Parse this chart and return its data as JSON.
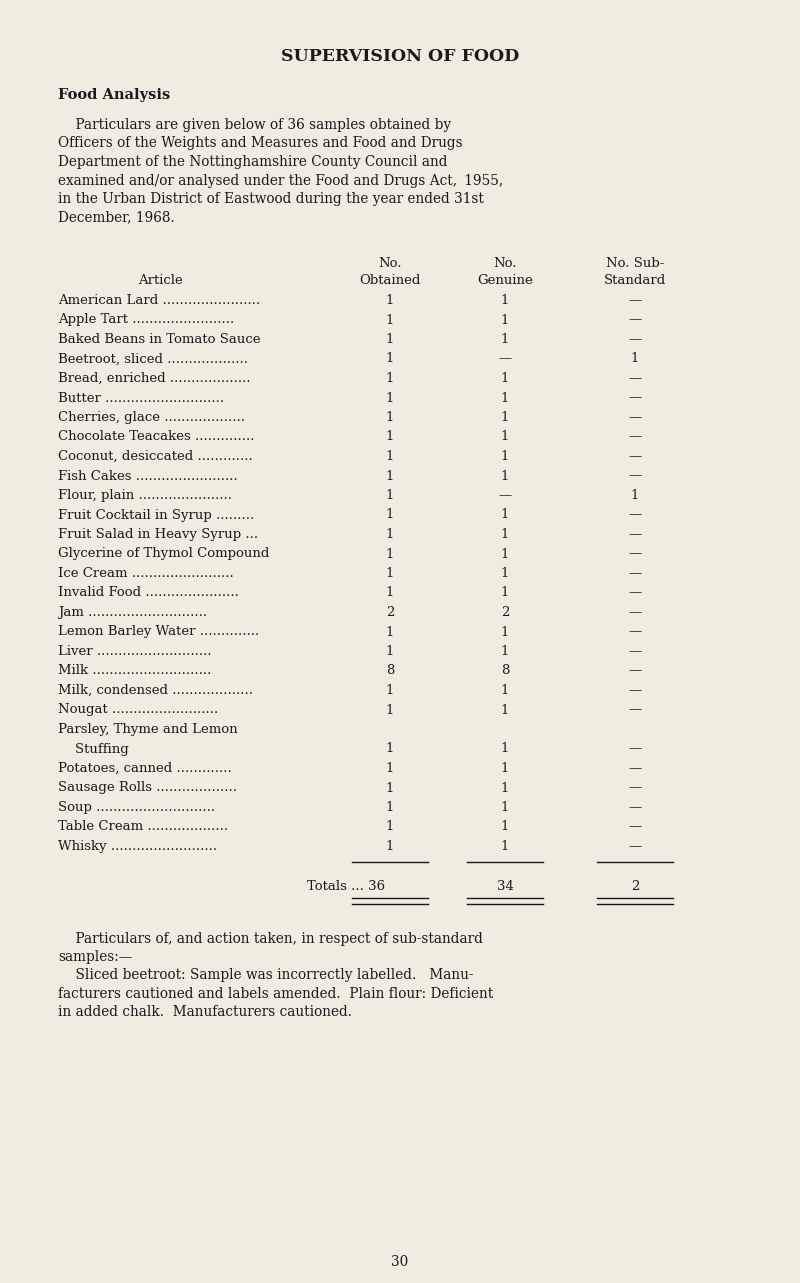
{
  "bg_color": "#f0ece0",
  "text_color": "#1a1a1a",
  "title": "SUPERVISION OF FOOD",
  "subtitle": "Food Analysis",
  "intro_lines": [
    "    Particulars are given below of 36 samples obtained by",
    "Officers of the Weights and Measures and Food and Drugs",
    "Department of the Nottinghamshire County Council and",
    "examined and/or analysed under the Food and Drugs Act,  1955,",
    "in the Urban District of Eastwood during the year ended 31st",
    "December, 1968."
  ],
  "col_header_row1": [
    "",
    "",
    "No.",
    "No.",
    "No. Sub-"
  ],
  "col_header_row2": [
    "",
    "Article",
    "Obtained",
    "Genuine",
    "Standard"
  ],
  "rows": [
    {
      "article": "American Lard",
      "dots": ".......................",
      "obtained": "1",
      "genuine": "1",
      "substandard": "—"
    },
    {
      "article": "Apple Tart",
      "dots": "........................",
      "obtained": "1",
      "genuine": "1",
      "substandard": "—"
    },
    {
      "article": "Baked Beans in Tomato Sauce",
      "dots": "",
      "obtained": "1",
      "genuine": "1",
      "substandard": "—"
    },
    {
      "article": "Beetroot, sliced",
      "dots": "...................",
      "obtained": "1",
      "genuine": "—",
      "substandard": "1"
    },
    {
      "article": "Bread, enriched",
      "dots": "...................",
      "obtained": "1",
      "genuine": "1",
      "substandard": "—"
    },
    {
      "article": "Butter",
      "dots": "............................",
      "obtained": "1",
      "genuine": "1",
      "substandard": "—"
    },
    {
      "article": "Cherries, glace",
      "dots": "...................",
      "obtained": "1",
      "genuine": "1",
      "substandard": "—"
    },
    {
      "article": "Chocolate Teacakes",
      "dots": "..............",
      "obtained": "1",
      "genuine": "1",
      "substandard": "—"
    },
    {
      "article": "Coconut, desiccated",
      "dots": ".............",
      "obtained": "1",
      "genuine": "1",
      "substandard": "—"
    },
    {
      "article": "Fish Cakes",
      "dots": "........................",
      "obtained": "1",
      "genuine": "1",
      "substandard": "—"
    },
    {
      "article": "Flour, plain",
      "dots": "......................",
      "obtained": "1",
      "genuine": "—",
      "substandard": "1"
    },
    {
      "article": "Fruit Cocktail in Syrup",
      "dots": ".........",
      "obtained": "1",
      "genuine": "1",
      "substandard": "—"
    },
    {
      "article": "Fruit Salad in Heavy Syrup ...",
      "dots": "",
      "obtained": "1",
      "genuine": "1",
      "substandard": "—"
    },
    {
      "article": "Glycerine of Thymol Compound",
      "dots": "",
      "obtained": "1",
      "genuine": "1",
      "substandard": "—"
    },
    {
      "article": "Ice Cream",
      "dots": "........................",
      "obtained": "1",
      "genuine": "1",
      "substandard": "—"
    },
    {
      "article": "Invalid Food",
      "dots": "......................",
      "obtained": "1",
      "genuine": "1",
      "substandard": "—"
    },
    {
      "article": "Jam",
      "dots": "............................",
      "obtained": "2",
      "genuine": "2",
      "substandard": "—"
    },
    {
      "article": "Lemon Barley Water",
      "dots": "..............",
      "obtained": "1",
      "genuine": "1",
      "substandard": "—"
    },
    {
      "article": "Liver",
      "dots": "...........................",
      "obtained": "1",
      "genuine": "1",
      "substandard": "—"
    },
    {
      "article": "Milk",
      "dots": "............................",
      "obtained": "8",
      "genuine": "8",
      "substandard": "—"
    },
    {
      "article": "Milk, condensed",
      "dots": "...................",
      "obtained": "1",
      "genuine": "1",
      "substandard": "—"
    },
    {
      "article": "Nougat",
      "dots": ".........................",
      "obtained": "1",
      "genuine": "1",
      "substandard": "—"
    },
    {
      "article": "Parsley, Thyme and Lemon",
      "dots": "",
      "obtained": "",
      "genuine": "",
      "substandard": ""
    },
    {
      "article": "    Stuffing",
      "dots": "",
      "obtained": "1",
      "genuine": "1",
      "substandard": "—"
    },
    {
      "article": "Potatoes, canned",
      "dots": ".............",
      "obtained": "1",
      "genuine": "1",
      "substandard": "—"
    },
    {
      "article": "Sausage Rolls",
      "dots": "...................",
      "obtained": "1",
      "genuine": "1",
      "substandard": "—"
    },
    {
      "article": "Soup",
      "dots": "............................",
      "obtained": "1",
      "genuine": "1",
      "substandard": "—"
    },
    {
      "article": "Table Cream",
      "dots": "...................",
      "obtained": "1",
      "genuine": "1",
      "substandard": "—"
    },
    {
      "article": "Whisky",
      "dots": ".........................",
      "obtained": "1",
      "genuine": "1",
      "substandard": "—"
    }
  ],
  "totals_obtained": "36",
  "totals_genuine": "34",
  "totals_substandard": "2",
  "footer_lines": [
    "    Particulars of, and action taken, in respect of sub-standard",
    "samples:—",
    "    Sliced beetroot: Sample was incorrectly labelled.   Manu-",
    "facturers cautioned and labels amended.  Plain flour: Deficient",
    "in added chalk.  Manufacturers cautioned."
  ],
  "page_number": "30",
  "title_fontsize": 12.5,
  "body_fontsize": 9.8,
  "table_fontsize": 9.5
}
